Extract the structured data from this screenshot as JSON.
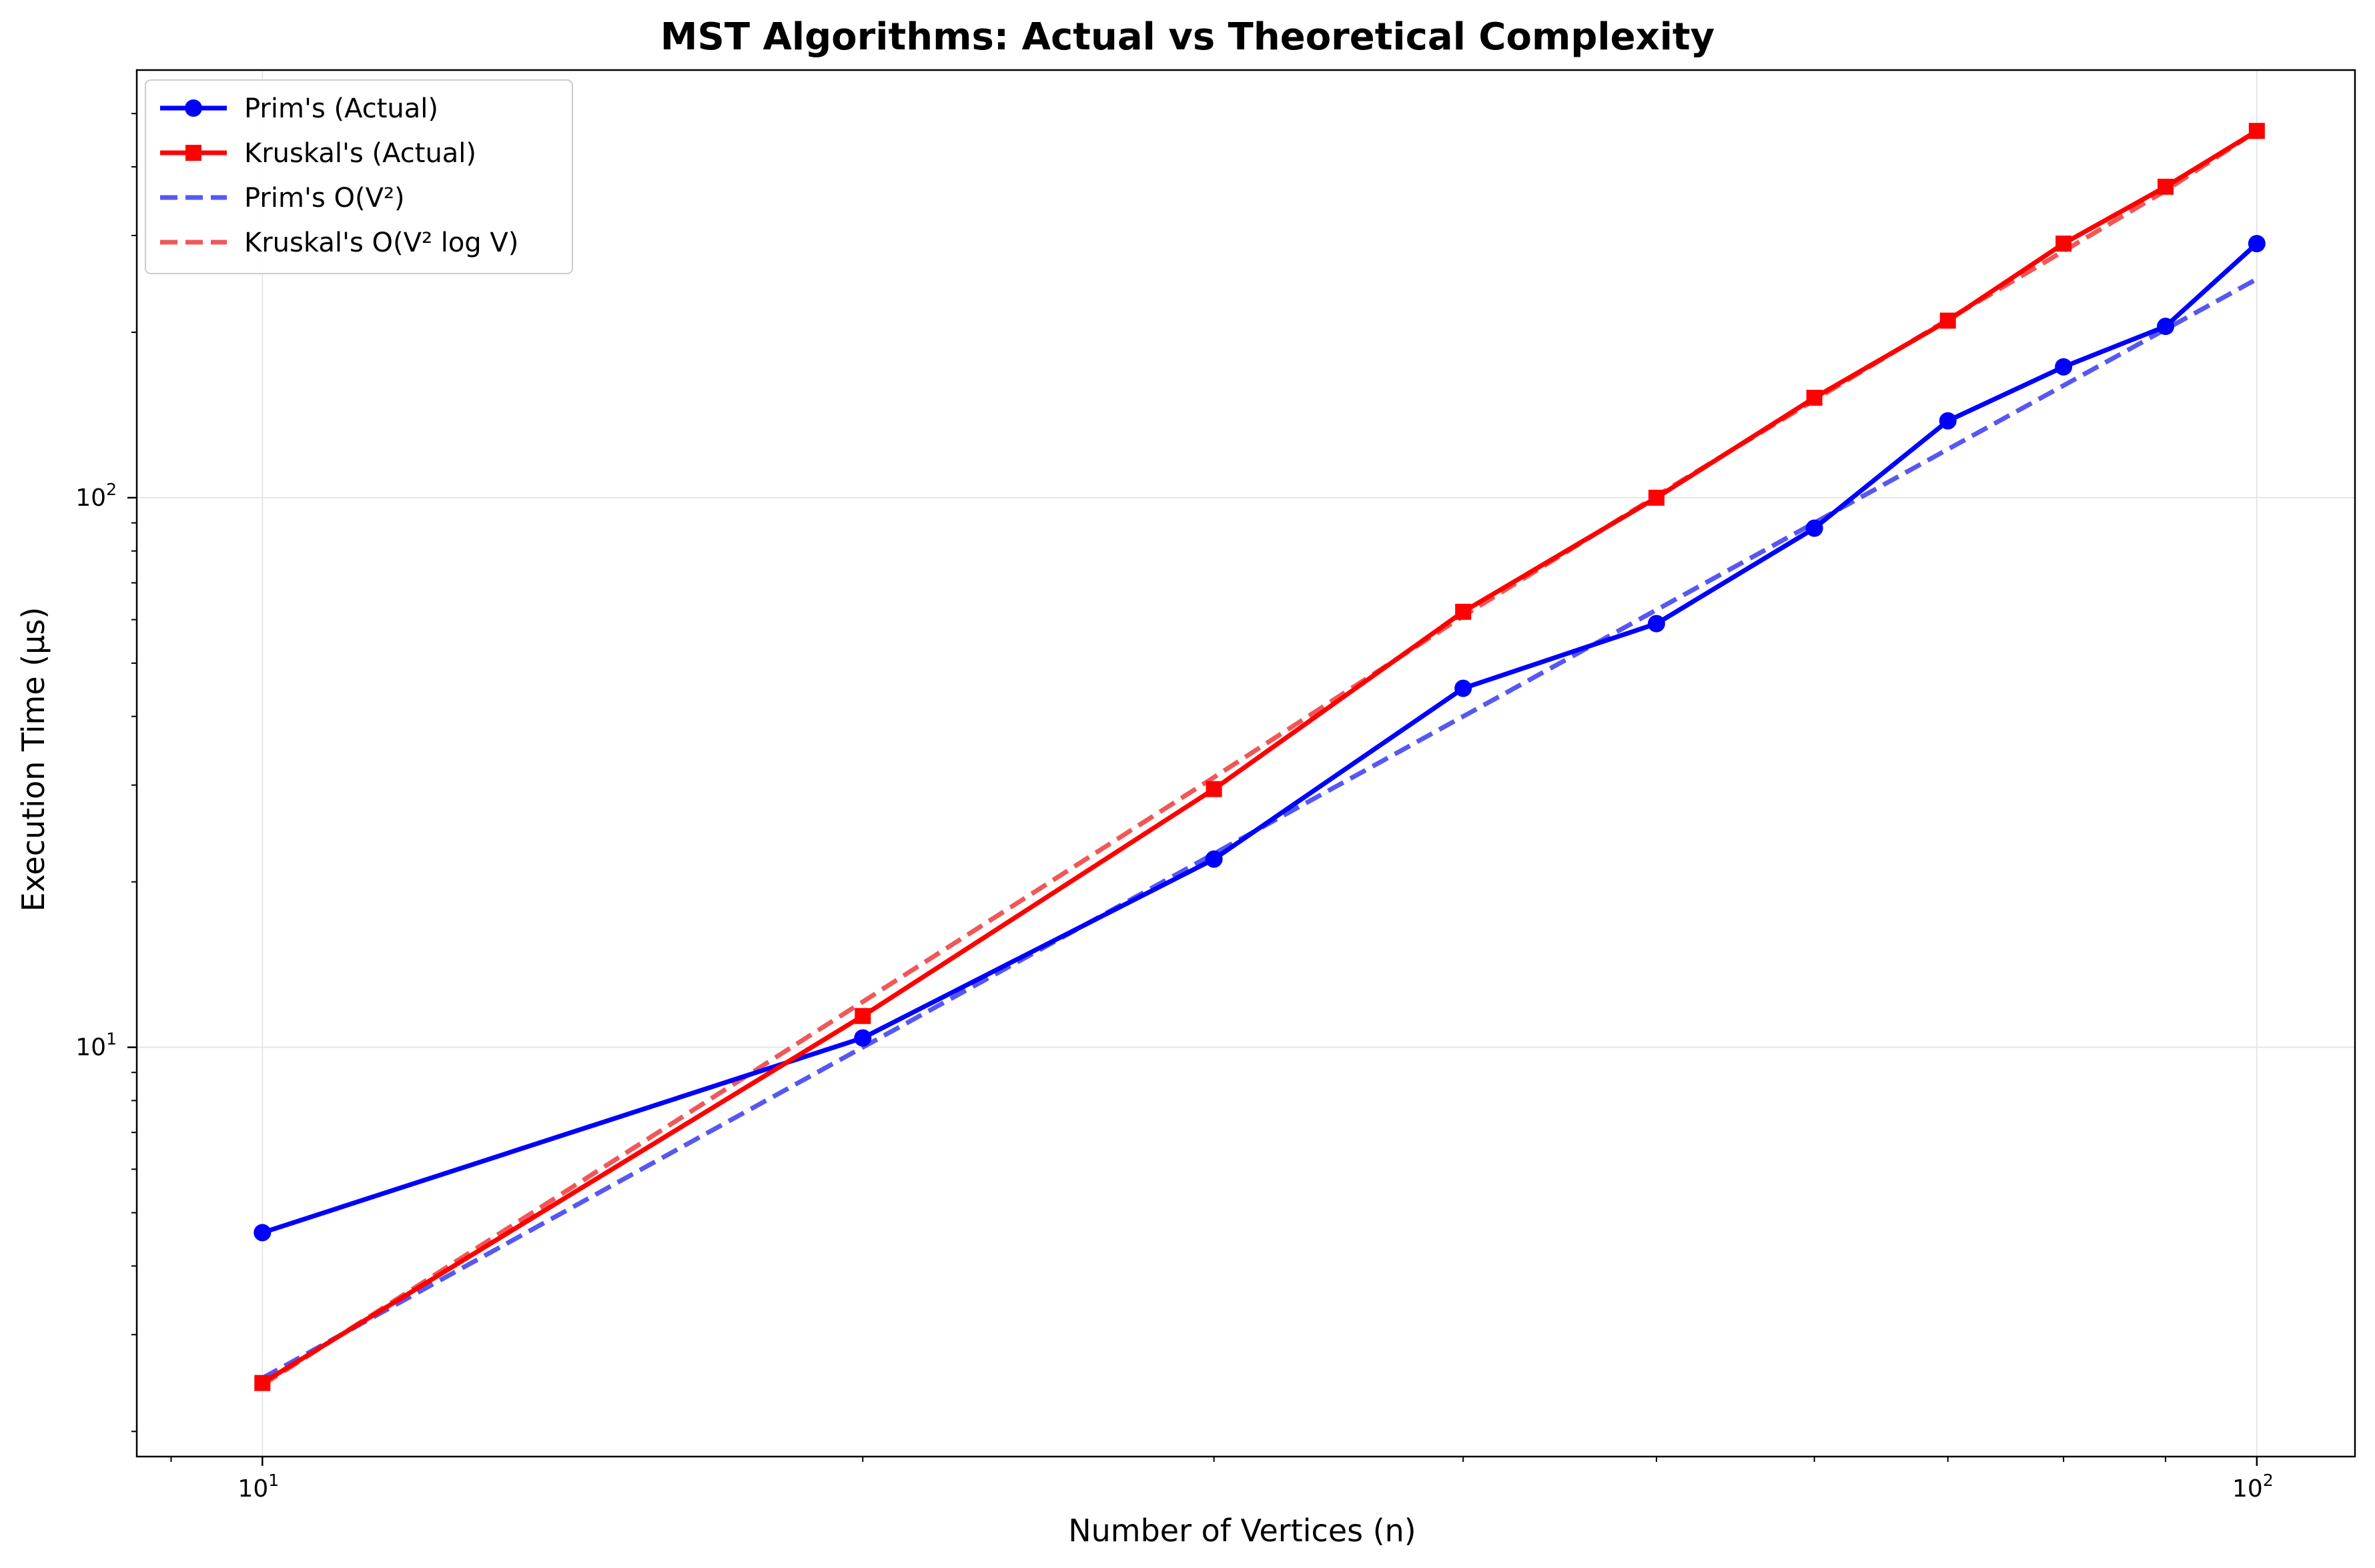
{
  "chart_data": {
    "type": "line",
    "title": "MST Algorithms: Actual vs Theoretical Complexity",
    "xlabel": "Number of Vertices (n)",
    "ylabel": "Execution Time (μs)",
    "xscale": "log",
    "yscale": "log",
    "xlim": [
      8.65,
      112
    ],
    "ylim": [
      1.8,
      600
    ],
    "grid": true,
    "legend_position": "upper-left",
    "x_ticks": [
      {
        "value": 10,
        "base": "10",
        "exp": "1"
      },
      {
        "value": 100,
        "base": "10",
        "exp": "2"
      }
    ],
    "y_ticks": [
      {
        "value": 10,
        "base": "10",
        "exp": "1"
      },
      {
        "value": 100,
        "base": "10",
        "exp": "2"
      }
    ],
    "x": [
      10,
      20,
      30,
      40,
      50,
      60,
      70,
      80,
      90,
      100
    ],
    "series": [
      {
        "name": "Prim's (Actual)",
        "color": "#0000ff",
        "style": "solid",
        "marker": "circle",
        "values": [
          4.6,
          10.4,
          22,
          45,
          59,
          88,
          138,
          173,
          205,
          290
        ]
      },
      {
        "name": "Kruskal's (Actual)",
        "color": "#ff0000",
        "style": "solid",
        "marker": "square",
        "values": [
          2.45,
          11.4,
          29.5,
          62,
          100,
          152,
          210,
          290,
          368,
          465
        ]
      },
      {
        "name": "Prim's O(V²)",
        "color": "#3a3aee",
        "style": "dashed",
        "marker": "none",
        "values": [
          2.5,
          10,
          22.5,
          40,
          62.5,
          90,
          122.5,
          160,
          202.5,
          250
        ]
      },
      {
        "name": "Kruskal's O(V² log V)",
        "color": "#ee3a3a",
        "style": "dashed",
        "marker": "none",
        "values": [
          2.43,
          12.1,
          31,
          60.9,
          100.7,
          150.6,
          211,
          281,
          362,
          465
        ]
      }
    ]
  }
}
